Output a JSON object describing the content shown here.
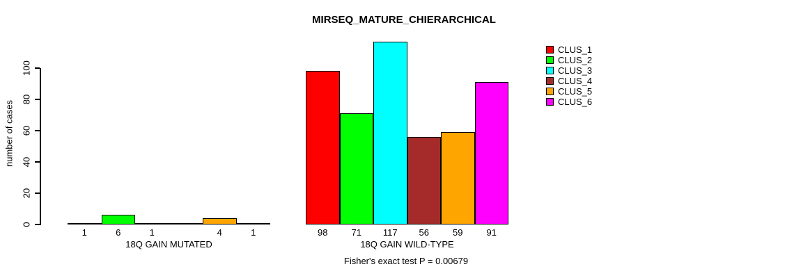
{
  "chart_data": {
    "type": "bar",
    "title": "MIRSEQ_MATURE_CHIERARCHICAL",
    "categories": [
      "18Q GAIN MUTATED",
      "18Q GAIN WILD-TYPE"
    ],
    "series": [
      {
        "name": "CLUS_1",
        "color": "#ff0000",
        "values": [
          1,
          98
        ]
      },
      {
        "name": "CLUS_2",
        "color": "#00ff00",
        "values": [
          6,
          71
        ]
      },
      {
        "name": "CLUS_3",
        "color": "#00ffff",
        "values": [
          1,
          117
        ]
      },
      {
        "name": "CLUS_4",
        "color": "#a52a2a",
        "values": [
          0,
          56
        ]
      },
      {
        "name": "CLUS_5",
        "color": "#ffa500",
        "values": [
          4,
          59
        ]
      },
      {
        "name": "CLUS_6",
        "color": "#ff00ff",
        "values": [
          1,
          91
        ]
      }
    ],
    "bar_labels": [
      [
        "1",
        "6",
        "1",
        "",
        "4",
        "1"
      ],
      [
        "98",
        "71",
        "117",
        "56",
        "59",
        "91"
      ]
    ],
    "ylabel": "number of cases",
    "yticks": [
      0,
      20,
      40,
      60,
      80,
      100
    ],
    "ylim": [
      0,
      117
    ],
    "grid": false,
    "legend_position": "right",
    "annotation": "Fisher's exact test P = 0.00679",
    "axis_color": "#000000",
    "background_color": "#ffffff"
  }
}
